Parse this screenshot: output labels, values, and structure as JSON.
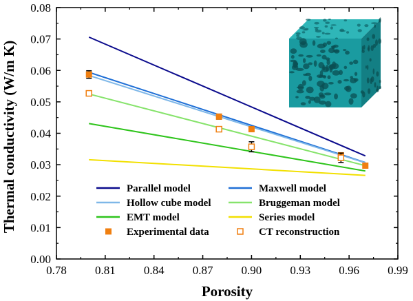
{
  "chart_data": {
    "type": "line",
    "title": "",
    "xlabel": "Porosity",
    "ylabel": "Thermal conductivity (W/m K)",
    "xlim": [
      0.78,
      0.99
    ],
    "ylim": [
      0.0,
      0.08
    ],
    "xticks": [
      "0.78",
      "0.81",
      "0.84",
      "0.87",
      "0.90",
      "0.93",
      "0.96",
      "0.99"
    ],
    "yticks": [
      "0.00",
      "0.01",
      "0.02",
      "0.03",
      "0.04",
      "0.05",
      "0.06",
      "0.07",
      "0.08"
    ],
    "grid": false,
    "legend_position": "bottom-center",
    "series": [
      {
        "name": "Parallel model",
        "kind": "line",
        "color": "#0a0a8c",
        "x": [
          0.8,
          0.97
        ],
        "y": [
          0.0706,
          0.0328
        ]
      },
      {
        "name": "Maxwell model",
        "kind": "line",
        "color": "#1f6fd6",
        "x": [
          0.8,
          0.97
        ],
        "y": [
          0.0594,
          0.0307
        ]
      },
      {
        "name": "Hollow cube model",
        "kind": "line",
        "color": "#7eb7e8",
        "x": [
          0.8,
          0.97
        ],
        "y": [
          0.0584,
          0.0306
        ]
      },
      {
        "name": "Bruggeman model",
        "kind": "line",
        "color": "#86e36b",
        "x": [
          0.8,
          0.97
        ],
        "y": [
          0.0525,
          0.0297
        ]
      },
      {
        "name": "EMT model",
        "kind": "line",
        "color": "#2ec41b",
        "x": [
          0.8,
          0.97
        ],
        "y": [
          0.0431,
          0.028
        ]
      },
      {
        "name": "Series model",
        "kind": "line",
        "color": "#f2e000",
        "x": [
          0.8,
          0.97
        ],
        "y": [
          0.0316,
          0.0266
        ]
      },
      {
        "name": "Experimental data",
        "kind": "filled-square",
        "color": "#f07f10",
        "points": [
          {
            "x": 0.8,
            "y": 0.0587,
            "err": 0.0012
          },
          {
            "x": 0.88,
            "y": 0.0453,
            "err": 0.0008
          },
          {
            "x": 0.9,
            "y": 0.0413,
            "err": 0.0008
          },
          {
            "x": 0.955,
            "y": 0.033,
            "err": 0.0008
          },
          {
            "x": 0.97,
            "y": 0.0297,
            "err": 0.0004
          }
        ]
      },
      {
        "name": "CT reconstruction",
        "kind": "open-square",
        "color": "#f07f10",
        "points": [
          {
            "x": 0.8,
            "y": 0.0527,
            "err": 0.0006
          },
          {
            "x": 0.88,
            "y": 0.0413,
            "err": 0.0004
          },
          {
            "x": 0.9,
            "y": 0.0357,
            "err": 0.0016
          },
          {
            "x": 0.955,
            "y": 0.0322,
            "err": 0.0015
          }
        ]
      }
    ],
    "inset_image": {
      "description_icon": "porous-foam-cube-icon",
      "color": "#1a9ba0"
    }
  }
}
